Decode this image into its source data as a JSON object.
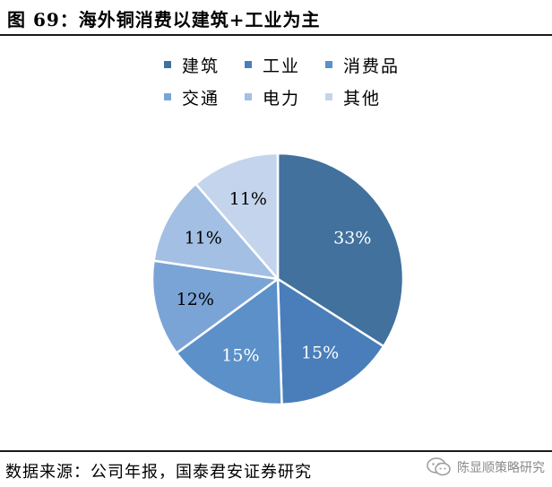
{
  "header": {
    "title": "图 69：海外铜消费以建筑+工业为主"
  },
  "chart_data": {
    "type": "pie",
    "title": "",
    "slices": [
      {
        "label": "建筑",
        "value": 33,
        "display": "33%",
        "color": "#41719c"
      },
      {
        "label": "工业",
        "value": 15,
        "display": "15%",
        "color": "#4a7ebb"
      },
      {
        "label": "消费品",
        "value": 15,
        "display": "15%",
        "color": "#5b90c9"
      },
      {
        "label": "交通",
        "value": 12,
        "display": "12%",
        "color": "#7ba4d6"
      },
      {
        "label": "电力",
        "value": 11,
        "display": "11%",
        "color": "#a3bfe3"
      },
      {
        "label": "其他",
        "value": 11,
        "display": "11%",
        "color": "#c4d4ec"
      }
    ],
    "legend_position": "top",
    "label_color": "#ffffff",
    "label_color_light": "#000000"
  },
  "footer": {
    "source": "数据来源：公司年报，国泰君安证券研究",
    "watermark": "陈显顺策略研究",
    "watermark_icon": "wechat-icon"
  }
}
